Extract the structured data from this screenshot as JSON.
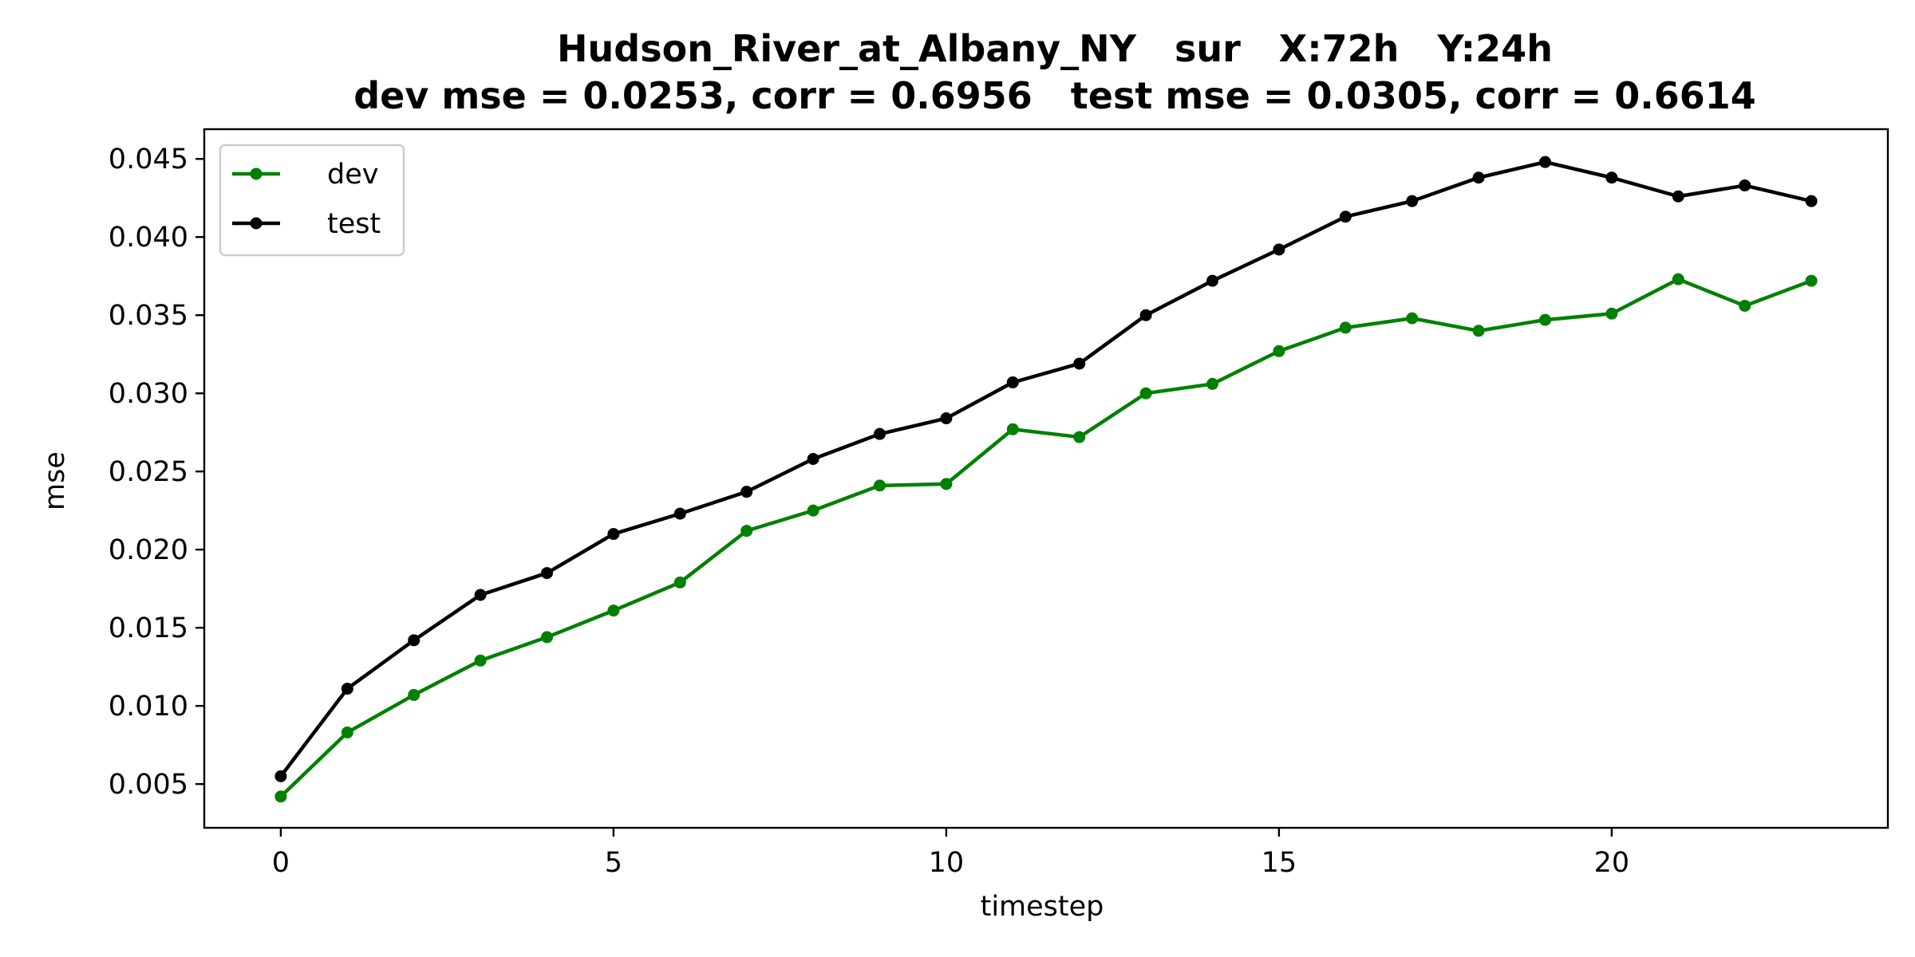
{
  "chart_data": {
    "type": "line",
    "title": "Hudson_River_at_Albany_NY   sur   X:72h   Y:24h",
    "subtitle": "dev mse = 0.0253, corr = 0.6956   test mse = 0.0305, corr = 0.6614",
    "xlabel": "timestep",
    "ylabel": "mse",
    "xlim": [
      -1.15,
      24.15
    ],
    "ylim": [
      0.0022,
      0.0469
    ],
    "xticks": [
      0,
      5,
      10,
      15,
      20
    ],
    "xtick_labels": [
      "0",
      "5",
      "10",
      "15",
      "20"
    ],
    "yticks": [
      0.005,
      0.01,
      0.015,
      0.02,
      0.025,
      0.03,
      0.035,
      0.04,
      0.045
    ],
    "ytick_labels": [
      "0.005",
      "0.010",
      "0.015",
      "0.020",
      "0.025",
      "0.030",
      "0.035",
      "0.040",
      "0.045"
    ],
    "grid": false,
    "legend_position": "top-left",
    "x": [
      0,
      1,
      2,
      3,
      4,
      5,
      6,
      7,
      8,
      9,
      10,
      11,
      12,
      13,
      14,
      15,
      16,
      17,
      18,
      19,
      20,
      21,
      22,
      23
    ],
    "series": [
      {
        "name": "dev",
        "color": "#008000",
        "values": [
          0.0042,
          0.0083,
          0.0107,
          0.0129,
          0.0144,
          0.0161,
          0.0179,
          0.0212,
          0.0225,
          0.0241,
          0.0242,
          0.0277,
          0.0272,
          0.03,
          0.0306,
          0.0327,
          0.0342,
          0.0348,
          0.034,
          0.0347,
          0.0351,
          0.0373,
          0.0356,
          0.0372
        ]
      },
      {
        "name": "test",
        "color": "#000000",
        "values": [
          0.0055,
          0.0111,
          0.0142,
          0.0171,
          0.0185,
          0.021,
          0.0223,
          0.0237,
          0.0258,
          0.0274,
          0.0284,
          0.0307,
          0.0319,
          0.035,
          0.0372,
          0.0392,
          0.0413,
          0.0423,
          0.0438,
          0.0448,
          0.0438,
          0.0426,
          0.0433,
          0.0423
        ]
      }
    ]
  }
}
